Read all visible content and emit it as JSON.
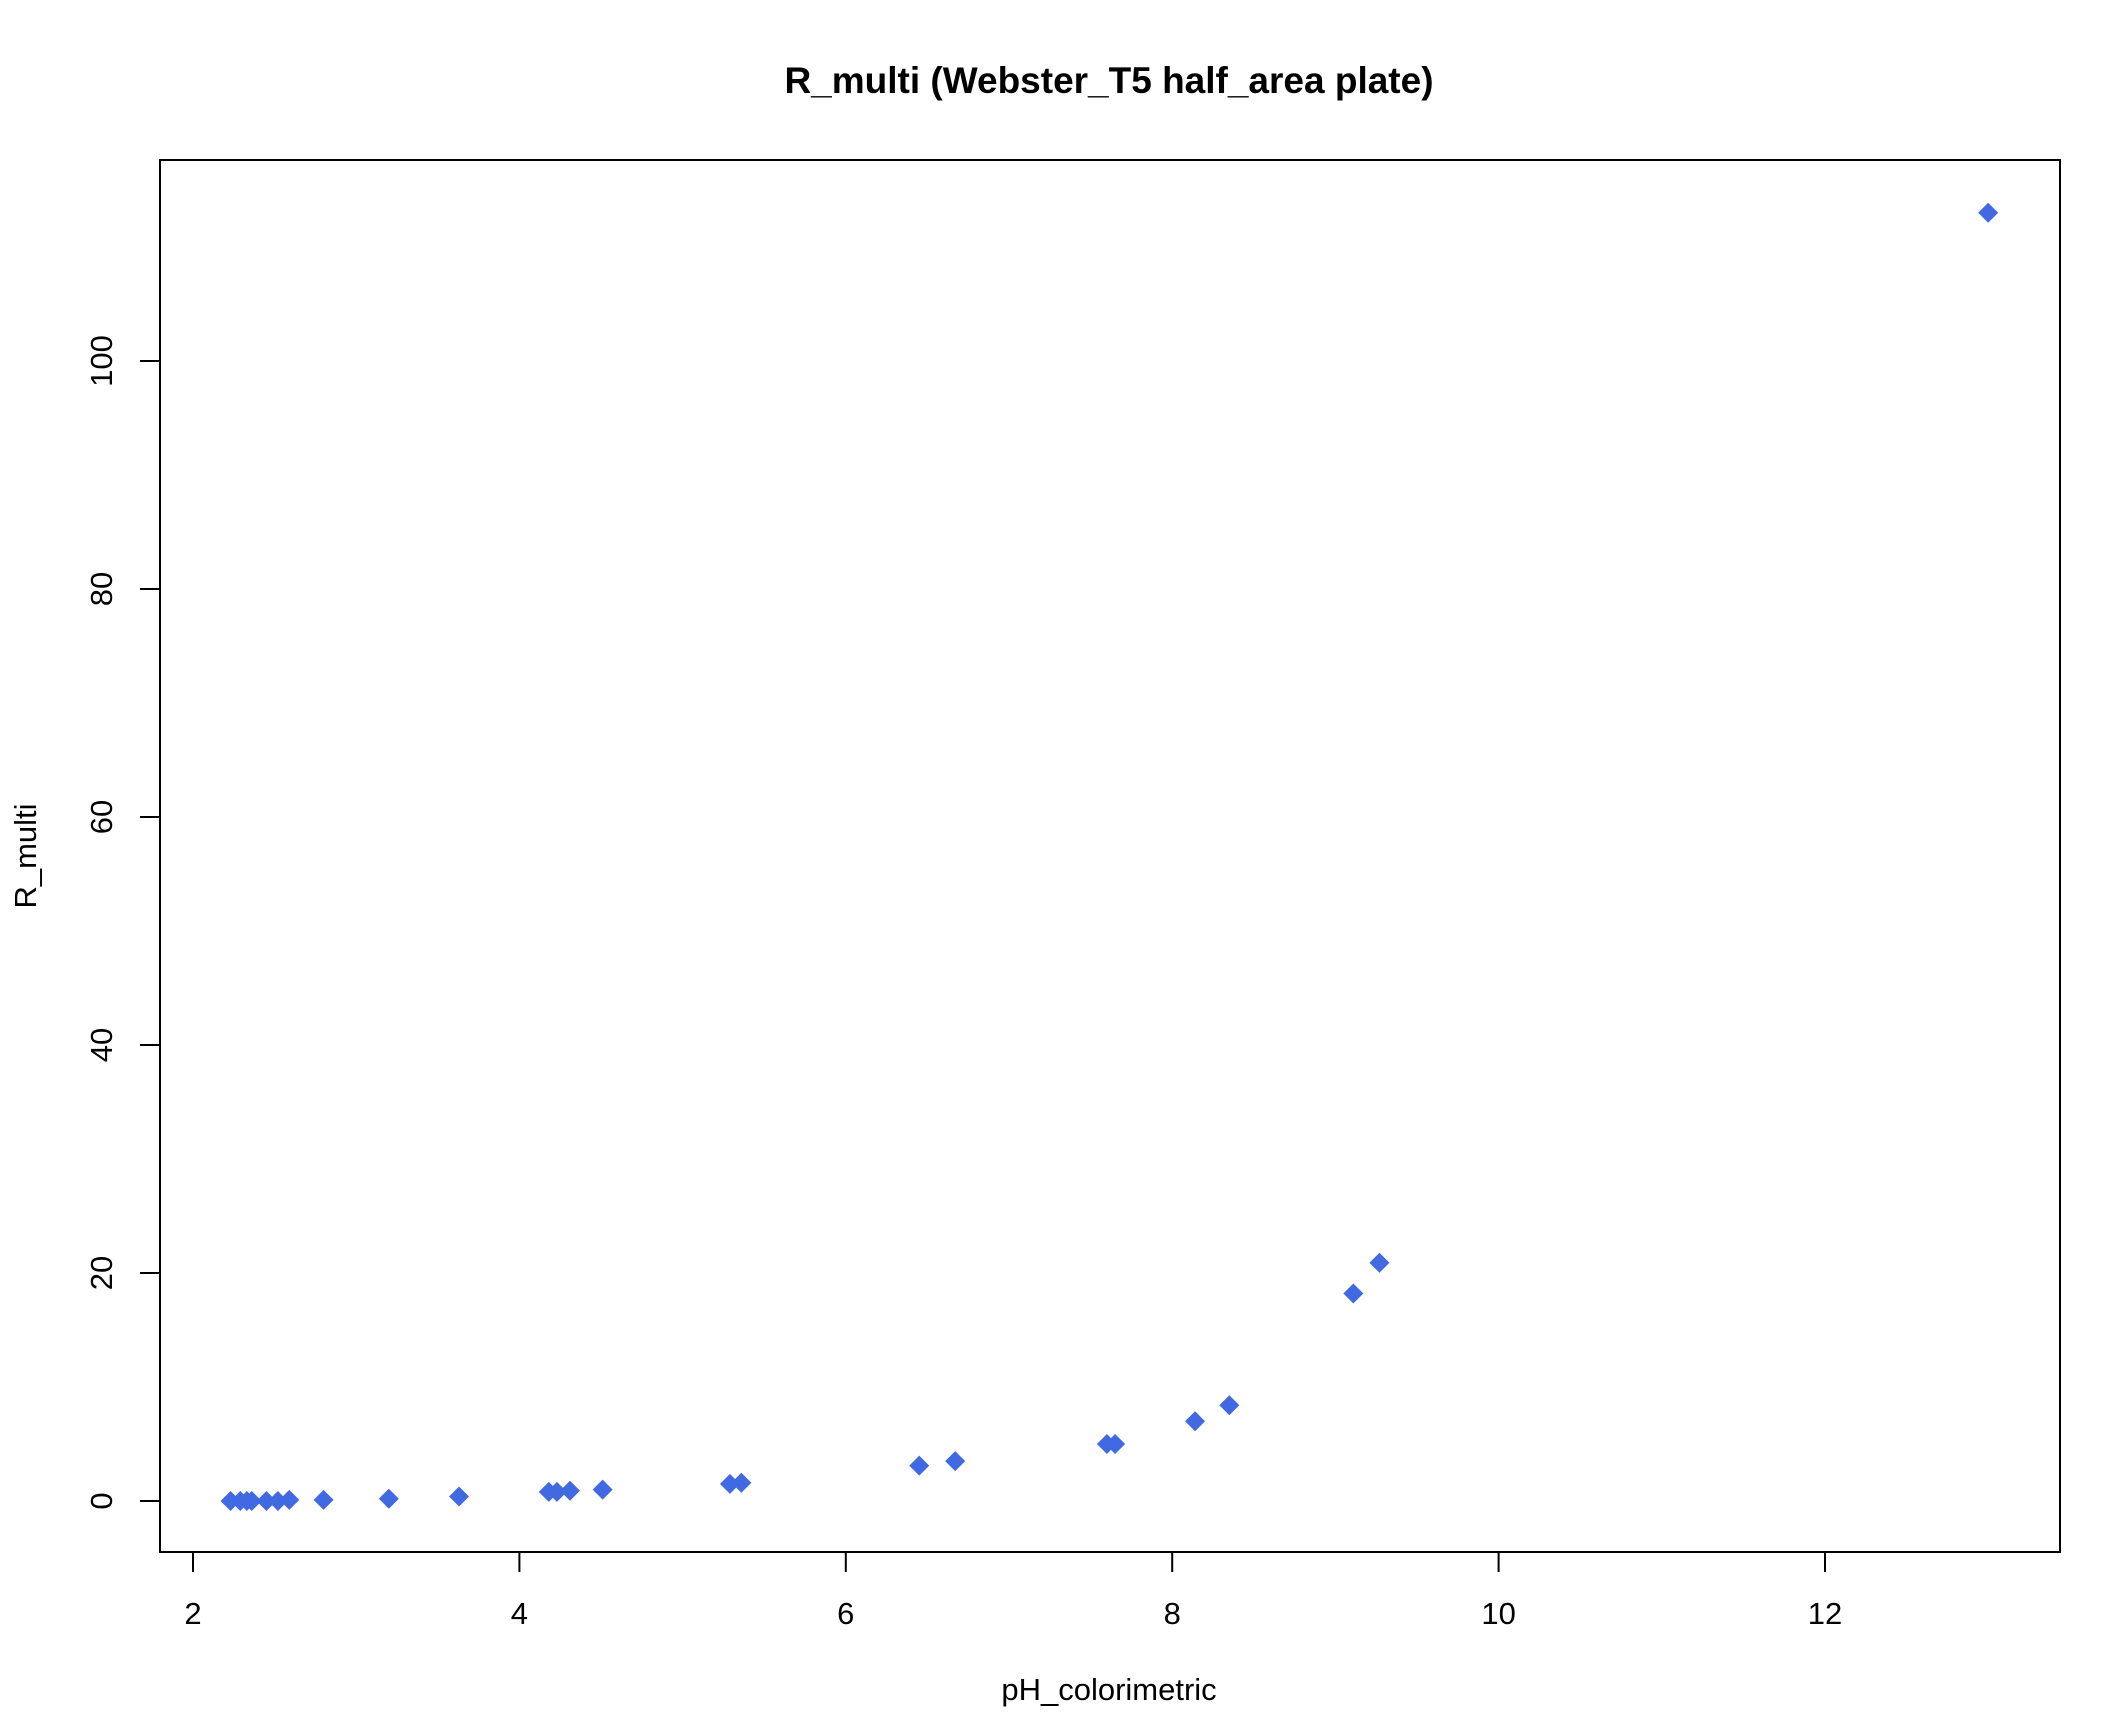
{
  "chart_data": {
    "type": "scatter",
    "title": "R_multi (Webster_T5 half_area plate)",
    "xlabel": "pH_colorimetric",
    "ylabel": "R_multi",
    "xlim": [
      2,
      13
    ],
    "ylim": [
      0,
      113
    ],
    "x_ticks": [
      "2",
      "4",
      "6",
      "8",
      "10",
      "12"
    ],
    "y_ticks": [
      "0",
      "20",
      "40",
      "60",
      "80",
      "100"
    ],
    "grid": false,
    "marker": "diamond",
    "marker_color": "#4169E1",
    "points": [
      {
        "x": 2.23,
        "y": 0.0
      },
      {
        "x": 2.29,
        "y": 0.0
      },
      {
        "x": 2.33,
        "y": 0.0
      },
      {
        "x": 2.36,
        "y": 0.0
      },
      {
        "x": 2.45,
        "y": 0.0
      },
      {
        "x": 2.52,
        "y": 0.0
      },
      {
        "x": 2.59,
        "y": 0.1
      },
      {
        "x": 2.8,
        "y": 0.1
      },
      {
        "x": 3.2,
        "y": 0.2
      },
      {
        "x": 3.63,
        "y": 0.4
      },
      {
        "x": 4.18,
        "y": 0.8
      },
      {
        "x": 4.23,
        "y": 0.8
      },
      {
        "x": 4.31,
        "y": 0.9
      },
      {
        "x": 4.51,
        "y": 1.0
      },
      {
        "x": 5.29,
        "y": 1.5
      },
      {
        "x": 5.36,
        "y": 1.6
      },
      {
        "x": 6.45,
        "y": 3.1
      },
      {
        "x": 6.67,
        "y": 3.5
      },
      {
        "x": 7.6,
        "y": 5.0
      },
      {
        "x": 7.65,
        "y": 5.0
      },
      {
        "x": 8.14,
        "y": 7.0
      },
      {
        "x": 8.35,
        "y": 8.4
      },
      {
        "x": 9.11,
        "y": 18.2
      },
      {
        "x": 9.27,
        "y": 20.9
      },
      {
        "x": 13.0,
        "y": 113.0
      }
    ]
  }
}
